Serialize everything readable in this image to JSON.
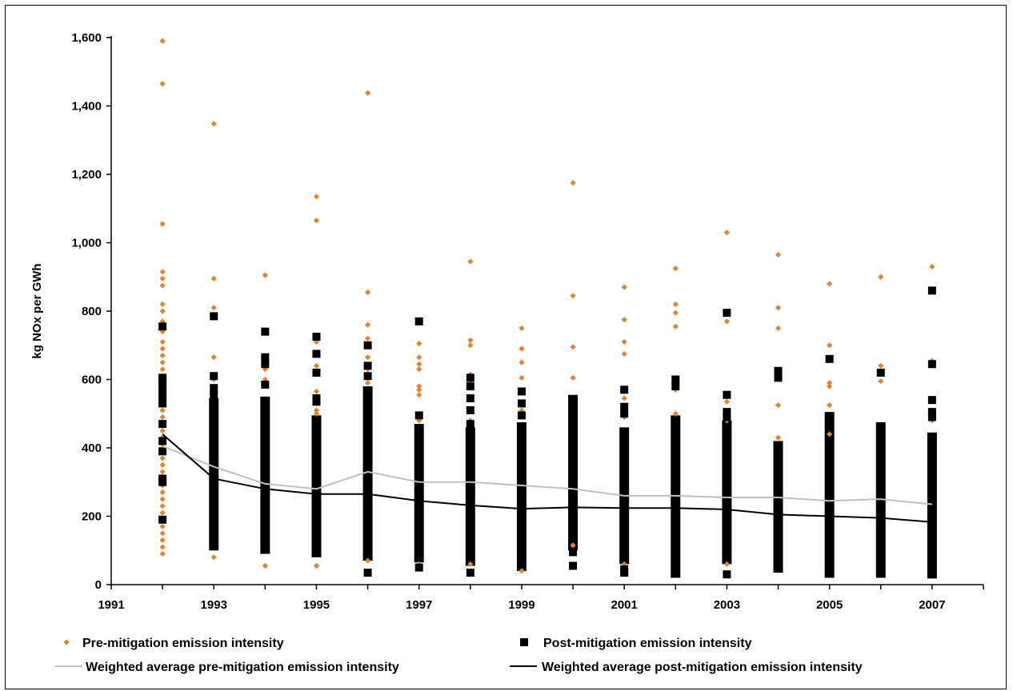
{
  "chart_data": {
    "type": "scatter",
    "title": "",
    "xlabel": "",
    "ylabel": "kg NOx per GWh",
    "xlim": [
      1991,
      2008
    ],
    "ylim": [
      0,
      1600
    ],
    "x_ticks": [
      1991,
      1993,
      1995,
      1997,
      1999,
      2001,
      2003,
      2005,
      2007
    ],
    "x_tick_labels": [
      "1991",
      "1993",
      "1995",
      "1997",
      "1999",
      "2001",
      "2003",
      "2005",
      "2007"
    ],
    "y_ticks": [
      0,
      200,
      400,
      600,
      800,
      1000,
      1200,
      1400,
      1600
    ],
    "y_tick_labels": [
      "0",
      "200",
      "400",
      "600",
      "800",
      "1,000",
      "1,200",
      "1,400",
      "1,600"
    ],
    "grid": false,
    "legend_position": "bottom",
    "legend": [
      "Pre-mitigation emission intensity",
      "Post-mitigation emission intensity",
      "Weighted average pre-mitigation emission intensity",
      "Weighted average post-mitigation emission intensity"
    ],
    "colors": {
      "pre": "#e8832a",
      "post": "#000000",
      "avg_pre": "#c0c0c0",
      "avg_post": "#000000"
    },
    "pre_points": [
      {
        "x": 1992,
        "y": [
          1590,
          1465,
          1055,
          915,
          895,
          875,
          820,
          800,
          770,
          740,
          710,
          690,
          670,
          650,
          630,
          610,
          590,
          570,
          550,
          530,
          510,
          490,
          470,
          450,
          430,
          410,
          390,
          370,
          350,
          330,
          310,
          290,
          270,
          250,
          230,
          210,
          190,
          170,
          150,
          130,
          110,
          90
        ]
      },
      {
        "x": 1993,
        "y": [
          1348,
          895,
          810,
          665,
          600,
          580,
          560,
          80
        ]
      },
      {
        "x": 1994,
        "y": [
          905,
          735,
          655,
          630,
          600,
          55
        ]
      },
      {
        "x": 1995,
        "y": [
          1135,
          1065,
          710,
          640,
          565,
          510,
          500,
          55
        ]
      },
      {
        "x": 1996,
        "y": [
          1438,
          855,
          760,
          720,
          665,
          630,
          610,
          590,
          70
        ]
      },
      {
        "x": 1997,
        "y": [
          770,
          705,
          665,
          645,
          630,
          580,
          570,
          555,
          480,
          60
        ]
      },
      {
        "x": 1998,
        "y": [
          945,
          715,
          700,
          615,
          590,
          480,
          60
        ]
      },
      {
        "x": 1999,
        "y": [
          750,
          690,
          650,
          605,
          510,
          495,
          40
        ]
      },
      {
        "x": 2000,
        "y": [
          1175,
          845,
          695,
          605,
          115
        ]
      },
      {
        "x": 2001,
        "y": [
          870,
          775,
          710,
          675,
          545,
          490,
          60
        ]
      },
      {
        "x": 2002,
        "y": [
          925,
          820,
          795,
          755,
          570,
          500
        ]
      },
      {
        "x": 2003,
        "y": [
          1030,
          795,
          770,
          535,
          480,
          60
        ]
      },
      {
        "x": 2004,
        "y": [
          965,
          810,
          750,
          525,
          430
        ]
      },
      {
        "x": 2005,
        "y": [
          880,
          700,
          590,
          580,
          525,
          440
        ]
      },
      {
        "x": 2006,
        "y": [
          900,
          640,
          595
        ]
      },
      {
        "x": 2007,
        "y": [
          930,
          860,
          655,
          510,
          480
        ]
      }
    ],
    "post_points": [
      {
        "x": 1992,
        "y": [
          755,
          605,
          590,
          570,
          550,
          530,
          470,
          420,
          390,
          310,
          300,
          190
        ]
      },
      {
        "x": 1993,
        "y": [
          785,
          610,
          575,
          555
        ]
      },
      {
        "x": 1994,
        "y": [
          740,
          665,
          645,
          585
        ]
      },
      {
        "x": 1995,
        "y": [
          725,
          675,
          620,
          545,
          535
        ]
      },
      {
        "x": 1996,
        "y": [
          700,
          640,
          610,
          35
        ]
      },
      {
        "x": 1997,
        "y": [
          770,
          495,
          50
        ]
      },
      {
        "x": 1998,
        "y": [
          605,
          580,
          545,
          510,
          470,
          35
        ]
      },
      {
        "x": 1999,
        "y": [
          565,
          530,
          495
        ]
      },
      {
        "x": 2000,
        "y": [
          55,
          95
        ]
      },
      {
        "x": 2001,
        "y": [
          570,
          520,
          500,
          35,
          45
        ]
      },
      {
        "x": 2002,
        "y": [
          600,
          580
        ]
      },
      {
        "x": 2003,
        "y": [
          795,
          555,
          505,
          490,
          30
        ]
      },
      {
        "x": 2004,
        "y": [
          625,
          605
        ]
      },
      {
        "x": 2005,
        "y": [
          660
        ]
      },
      {
        "x": 2006,
        "y": [
          620
        ]
      },
      {
        "x": 2007,
        "y": [
          860,
          645,
          540,
          505,
          490
        ]
      }
    ],
    "post_bars": [
      {
        "x": 1993,
        "min": 100,
        "max": 545
      },
      {
        "x": 1994,
        "min": 90,
        "max": 550
      },
      {
        "x": 1995,
        "min": 80,
        "max": 495
      },
      {
        "x": 1996,
        "min": 70,
        "max": 580
      },
      {
        "x": 1997,
        "min": 65,
        "max": 470
      },
      {
        "x": 1998,
        "min": 55,
        "max": 460
      },
      {
        "x": 1999,
        "min": 40,
        "max": 475
      },
      {
        "x": 2000,
        "min": 100,
        "max": 555
      },
      {
        "x": 2001,
        "min": 60,
        "max": 460
      },
      {
        "x": 2002,
        "min": 20,
        "max": 495
      },
      {
        "x": 2003,
        "min": 60,
        "max": 480
      },
      {
        "x": 2004,
        "min": 35,
        "max": 420
      },
      {
        "x": 2005,
        "min": 20,
        "max": 505
      },
      {
        "x": 2006,
        "min": 20,
        "max": 475
      },
      {
        "x": 2007,
        "min": 18,
        "max": 445
      }
    ],
    "series": [
      {
        "name": "Weighted average pre-mitigation emission intensity",
        "x": [
          1992,
          1993,
          1994,
          1995,
          1996,
          1997,
          1998,
          1999,
          2000,
          2001,
          2002,
          2003,
          2004,
          2005,
          2006,
          2007
        ],
        "values": [
          405,
          345,
          295,
          280,
          330,
          300,
          300,
          290,
          280,
          260,
          260,
          255,
          255,
          245,
          250,
          235
        ]
      },
      {
        "name": "Weighted average post-mitigation emission intensity",
        "x": [
          1992,
          1993,
          1994,
          1995,
          1996,
          1997,
          1998,
          1999,
          2000,
          2001,
          2002,
          2003,
          2004,
          2005,
          2006,
          2007
        ],
        "values": [
          440,
          310,
          280,
          265,
          265,
          245,
          232,
          222,
          226,
          224,
          224,
          220,
          205,
          200,
          195,
          183
        ]
      }
    ]
  }
}
